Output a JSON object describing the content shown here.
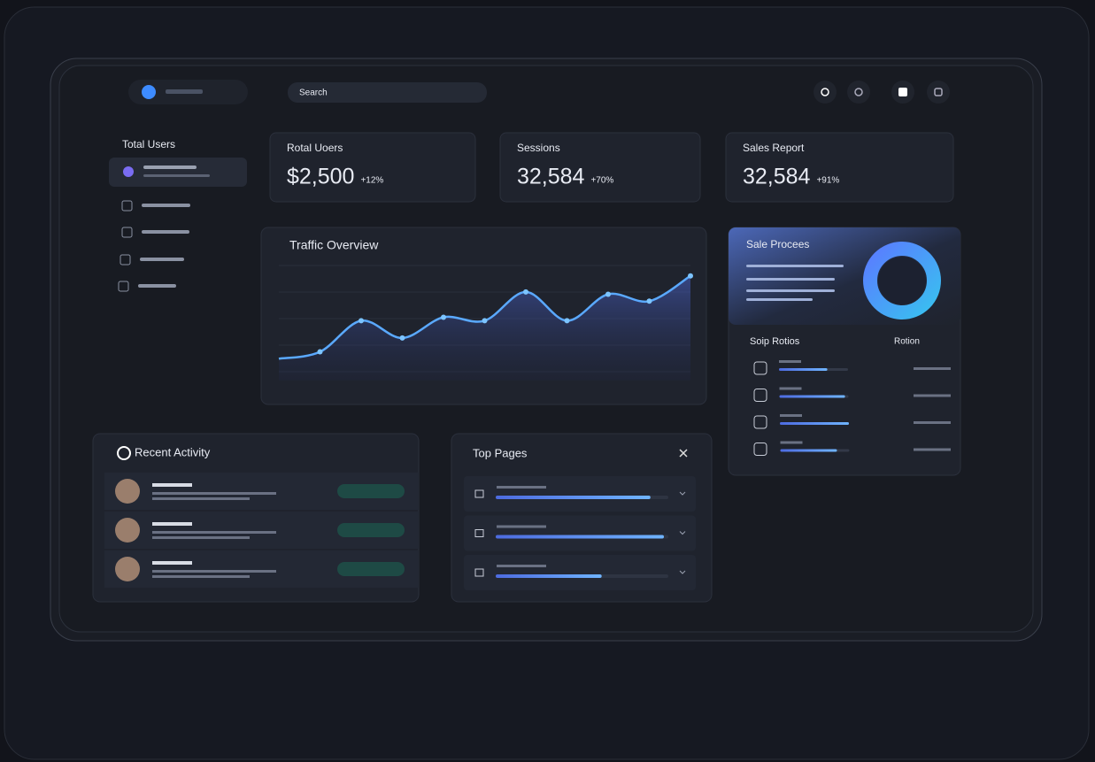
{
  "header": {
    "search": "Search"
  },
  "sidebar": {
    "title": "Total Users"
  },
  "stats": [
    {
      "title": "Rotal Uoers",
      "value": "$2,500",
      "change": "+12%"
    },
    {
      "title": "Sessions",
      "value": "32,584",
      "change": "+70%"
    },
    {
      "title": "Sales Report",
      "value": "32,584",
      "change": "+91%"
    }
  ],
  "traffic": {
    "title": "Traffic Overview",
    "values": [
      19,
      25,
      52,
      37,
      55,
      52,
      77,
      52,
      75,
      69,
      91
    ],
    "ylim": [
      0,
      100
    ]
  },
  "sales": {
    "title": "Sale Procees",
    "subtitle": "Soip Rotios",
    "column": "Rotion",
    "bars": [
      70,
      95,
      100,
      82
    ],
    "range": [
      0,
      100
    ]
  },
  "activity": {
    "title": "Recent Activity"
  },
  "top_pages": {
    "title": "Top Pages",
    "bars": [
      92,
      100,
      63
    ],
    "range": [
      0,
      100
    ]
  }
}
